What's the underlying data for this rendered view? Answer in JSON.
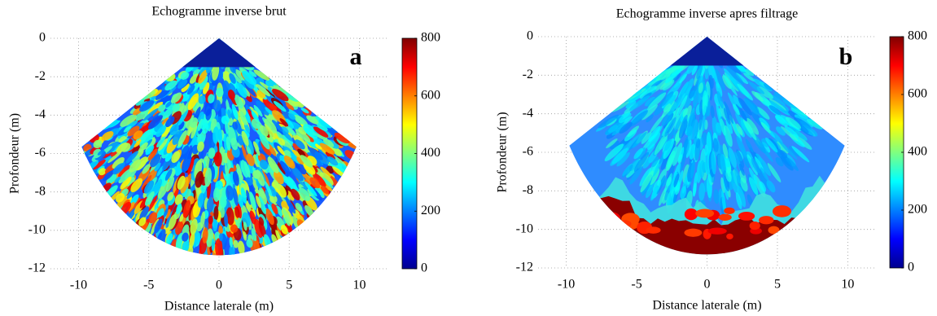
{
  "chart_data": [
    {
      "type": "heatmap",
      "title": "Echogramme inverse brut",
      "panel_label": "a",
      "xlabel": "Distance laterale (m)",
      "ylabel": "Profondeur (m)",
      "xlim": [
        -12,
        12
      ],
      "xticks": [
        -10,
        -5,
        0,
        5,
        10
      ],
      "ylim": [
        -12,
        0
      ],
      "yticks": [
        -12,
        -10,
        -8,
        -6,
        -4,
        -2,
        0
      ],
      "grid": true,
      "colormap": "jet",
      "colorbar": {
        "clim": [
          0,
          800
        ],
        "ticks": [
          0,
          200,
          400,
          600,
          800
        ]
      }
    },
    {
      "type": "heatmap",
      "title": "Echogramme inverse apres filtrage",
      "panel_label": "b",
      "xlabel": "Distance laterale (m)",
      "ylabel": "Profondeur (m)",
      "xlim": [
        -12,
        12
      ],
      "xticks": [
        -10,
        -5,
        0,
        5,
        10
      ],
      "ylim": [
        -12,
        0
      ],
      "yticks": [
        -12,
        -10,
        -8,
        -6,
        -4,
        -2,
        0
      ],
      "grid": true,
      "colormap": "jet",
      "colorbar": {
        "clim": [
          0,
          800
        ],
        "ticks": [
          0,
          200,
          400,
          600,
          800
        ]
      }
    }
  ]
}
